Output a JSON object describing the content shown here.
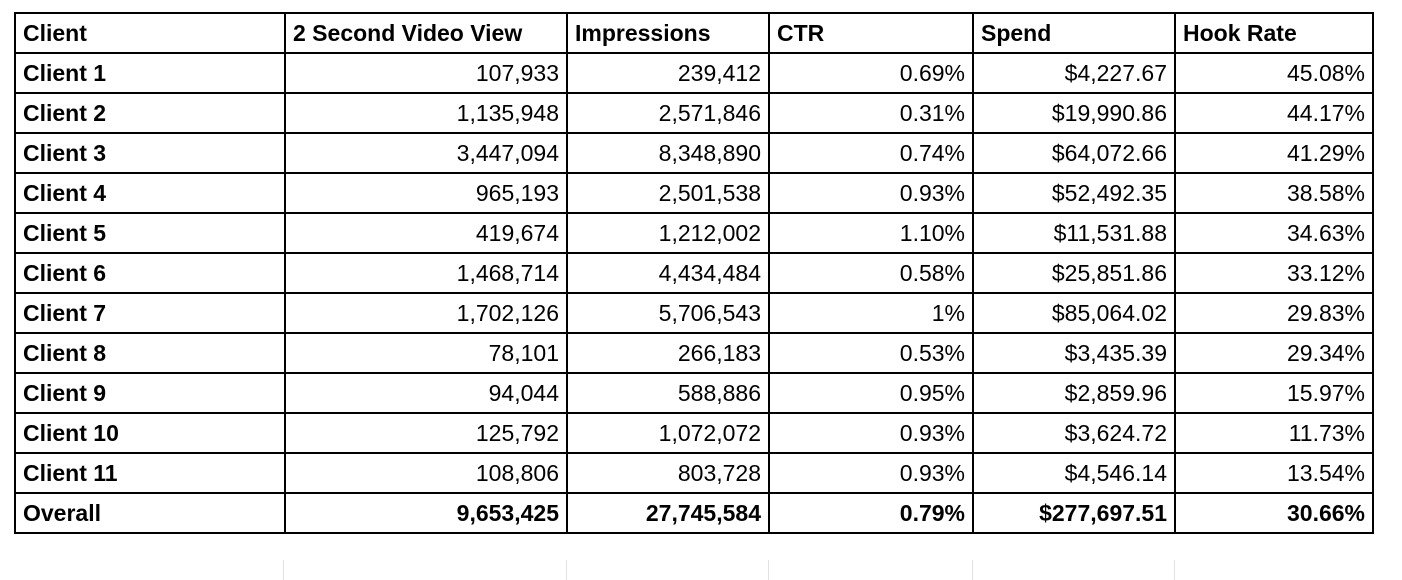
{
  "table": {
    "columns": [
      "Client",
      "2 Second Video View",
      "Impressions",
      "CTR",
      "Spend",
      "Hook Rate"
    ],
    "rows": [
      {
        "client": "Client 1",
        "video_views": "107,933",
        "impressions": "239,412",
        "ctr": "0.69%",
        "spend": "$4,227.67",
        "hook_rate": "45.08%"
      },
      {
        "client": "Client 2",
        "video_views": "1,135,948",
        "impressions": "2,571,846",
        "ctr": "0.31%",
        "spend": "$19,990.86",
        "hook_rate": "44.17%"
      },
      {
        "client": "Client 3",
        "video_views": "3,447,094",
        "impressions": "8,348,890",
        "ctr": "0.74%",
        "spend": "$64,072.66",
        "hook_rate": "41.29%"
      },
      {
        "client": "Client 4",
        "video_views": "965,193",
        "impressions": "2,501,538",
        "ctr": "0.93%",
        "spend": "$52,492.35",
        "hook_rate": "38.58%"
      },
      {
        "client": "Client 5",
        "video_views": "419,674",
        "impressions": "1,212,002",
        "ctr": "1.10%",
        "spend": "$11,531.88",
        "hook_rate": "34.63%"
      },
      {
        "client": "Client 6",
        "video_views": "1,468,714",
        "impressions": "4,434,484",
        "ctr": "0.58%",
        "spend": "$25,851.86",
        "hook_rate": "33.12%"
      },
      {
        "client": "Client 7",
        "video_views": "1,702,126",
        "impressions": "5,706,543",
        "ctr": "1%",
        "spend": "$85,064.02",
        "hook_rate": "29.83%"
      },
      {
        "client": "Client 8",
        "video_views": "78,101",
        "impressions": "266,183",
        "ctr": "0.53%",
        "spend": "$3,435.39",
        "hook_rate": "29.34%"
      },
      {
        "client": "Client 9",
        "video_views": "94,044",
        "impressions": "588,886",
        "ctr": "0.95%",
        "spend": "$2,859.96",
        "hook_rate": "15.97%"
      },
      {
        "client": "Client 10",
        "video_views": "125,792",
        "impressions": "1,072,072",
        "ctr": "0.93%",
        "spend": "$3,624.72",
        "hook_rate": "11.73%"
      },
      {
        "client": "Client 11",
        "video_views": "108,806",
        "impressions": "803,728",
        "ctr": "0.93%",
        "spend": "$4,546.14",
        "hook_rate": "13.54%"
      }
    ],
    "total": {
      "client": "Overall",
      "video_views": "9,653,425",
      "impressions": "27,745,584",
      "ctr": "0.79%",
      "spend": "$277,697.51",
      "hook_rate": "30.66%"
    }
  }
}
